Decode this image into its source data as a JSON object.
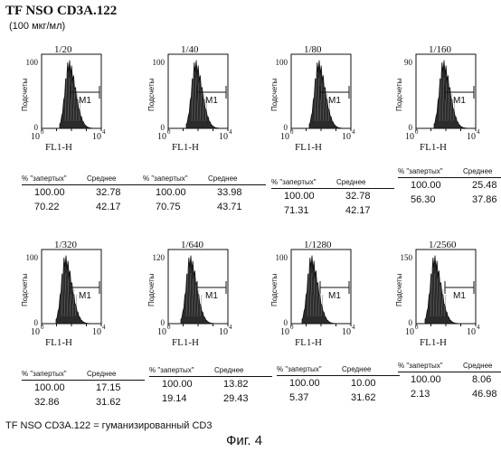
{
  "title": "TF NSO CD3A.122",
  "concentration": "(100 мкг/мл)",
  "axis": {
    "ylabel": "Подсчеты",
    "xlabel": "FL1-H",
    "x_tick_base": "10",
    "x_min_exp": "0",
    "x_max_exp": "4",
    "gate_label": "M1"
  },
  "stat_headers": {
    "pct": "% \"запертых\"",
    "mean": "Среднее"
  },
  "panels": [
    {
      "dilution": "1/20",
      "ytop": "100",
      "stats": [
        [
          "100.00",
          "32.78"
        ],
        [
          "70.22",
          "42.17"
        ]
      ]
    },
    {
      "dilution": "1/40",
      "ytop": "100",
      "stats": [
        [
          "100.00",
          "33.98"
        ],
        [
          "70.75",
          "43.71"
        ]
      ]
    },
    {
      "dilution": "1/80",
      "ytop": "100",
      "stats": [
        [
          "100.00",
          "32.78"
        ],
        [
          "71.31",
          "42.17"
        ]
      ]
    },
    {
      "dilution": "1/160",
      "ytop": "90",
      "stats": [
        [
          "100.00",
          "25.48"
        ],
        [
          "56.30",
          "37.86"
        ]
      ]
    },
    {
      "dilution": "1/320",
      "ytop": "100",
      "stats": [
        [
          "100.00",
          "17.15"
        ],
        [
          "32.86",
          "31.62"
        ]
      ]
    },
    {
      "dilution": "1/640",
      "ytop": "120",
      "stats": [
        [
          "100.00",
          "13.82"
        ],
        [
          "19.14",
          "29.43"
        ]
      ]
    },
    {
      "dilution": "1/1280",
      "ytop": "100",
      "stats": [
        [
          "100.00",
          "10.00"
        ],
        [
          "5.37",
          "31.62"
        ]
      ]
    },
    {
      "dilution": "1/2560",
      "ytop": "150",
      "stats": [
        [
          "100.00",
          "8.06"
        ],
        [
          "2.13",
          "46.98"
        ]
      ]
    }
  ],
  "footer": "TF NSO CD3A.122 = гуманизированный CD3",
  "figure_label": "Фиг. 4"
}
